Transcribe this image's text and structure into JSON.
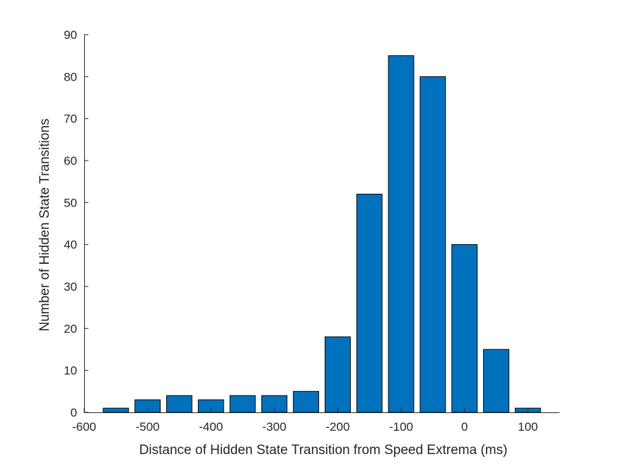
{
  "chart_data": {
    "type": "bar",
    "title": "",
    "xlabel": "Distance of Hidden State Transition from Speed Extrema (ms)",
    "ylabel": "Number of Hidden State Transitions",
    "xlim": [
      -600,
      150
    ],
    "ylim": [
      0,
      90
    ],
    "xticks": [
      -600,
      -500,
      -400,
      -300,
      -200,
      -100,
      0,
      100
    ],
    "yticks": [
      0,
      10,
      20,
      30,
      40,
      50,
      60,
      70,
      80,
      90
    ],
    "bar_width": 40,
    "x": [
      -550,
      -500,
      -450,
      -400,
      -350,
      -300,
      -250,
      -200,
      -150,
      -100,
      -50,
      0,
      50,
      100
    ],
    "values": [
      1,
      3,
      4,
      3,
      4,
      4,
      5,
      18,
      52,
      85,
      80,
      40,
      15,
      1
    ],
    "colors": {
      "bar": "#0072BD",
      "bar_edge": "#000000",
      "axis": "#262626"
    },
    "grid": false,
    "box": false
  }
}
